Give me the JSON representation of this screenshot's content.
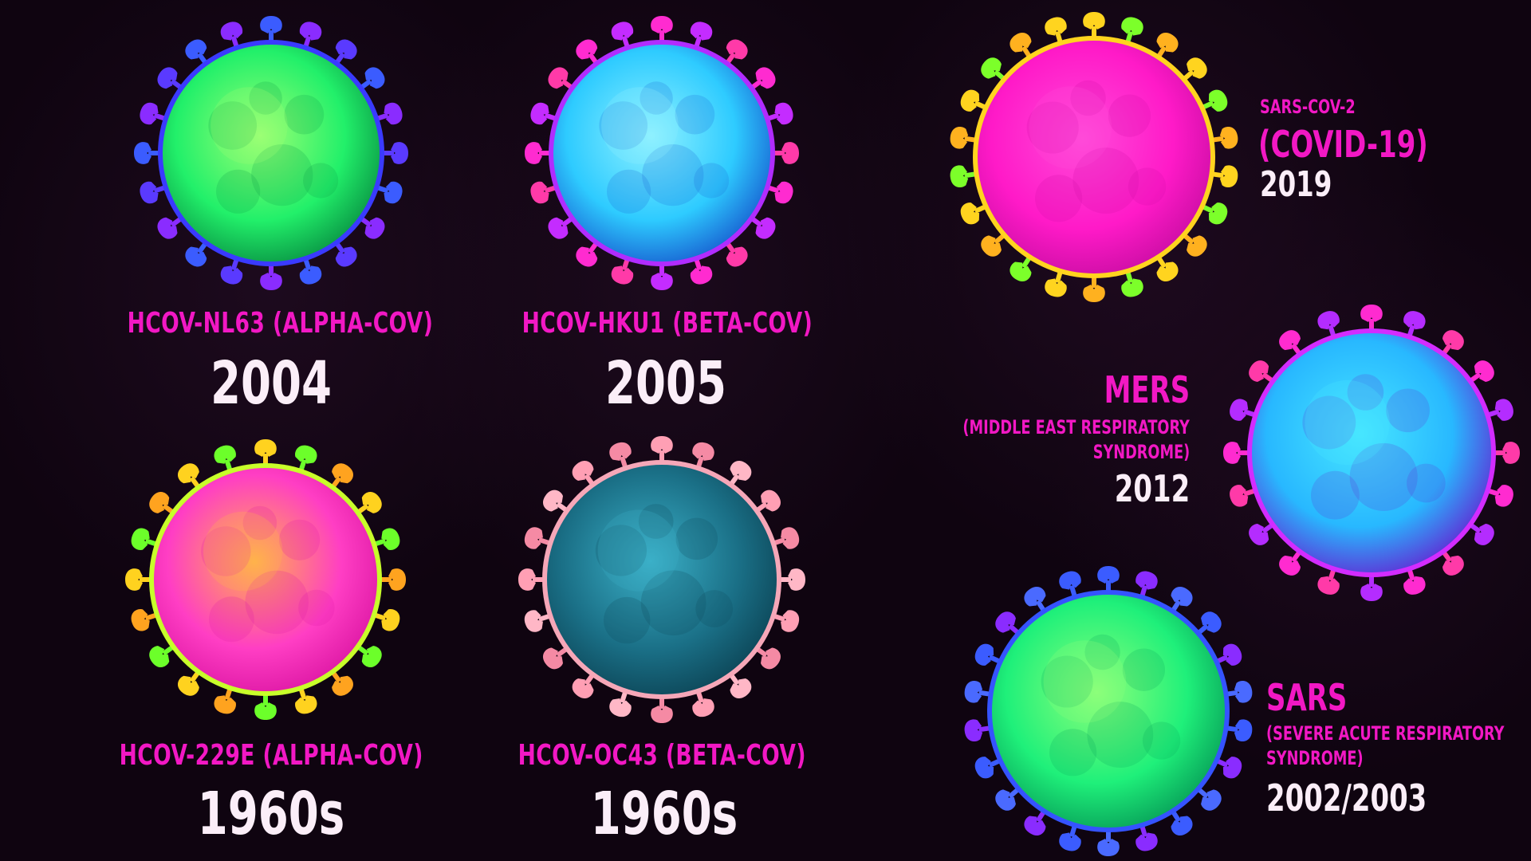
{
  "viruses": [
    {
      "id": "nl63",
      "name": "HCOV-NL63 (ALPHA-COV)",
      "year": "2004",
      "body": [
        "#9cff74",
        "#22f06a",
        "#0c9e48"
      ],
      "rim": "#3a3aff",
      "spikes": [
        "#3b5cff",
        "#8a2cff",
        "#5a3aff"
      ]
    },
    {
      "id": "hku1",
      "name": "HCOV-HKU1 (BETA-COV)",
      "year": "2005",
      "body": [
        "#8ff1ff",
        "#2ecbff",
        "#1a6bd6"
      ],
      "rim": "#b12cff",
      "spikes": [
        "#ff2bd0",
        "#c42cff",
        "#ff3aa8"
      ]
    },
    {
      "id": "e229",
      "name": "HCOV-229E (ALPHA-COV)",
      "year": "1960s",
      "body": [
        "#ffb34a",
        "#ff3ec4",
        "#e11ca8"
      ],
      "rim": "#c8ff2a",
      "spikes": [
        "#ffd21f",
        "#6cff2a",
        "#ffa31f"
      ]
    },
    {
      "id": "oc43",
      "name": "HCOV-OC43 (BETA-COV)",
      "year": "1960s",
      "body": [
        "#3bb0c8",
        "#1a6f86",
        "#0e4a5c"
      ],
      "rim": "#f6a7b8",
      "spikes": [
        "#ff9fb4",
        "#f58aa4",
        "#ffb7c6"
      ]
    },
    {
      "id": "cov2",
      "name_prefix": "SARS-COV-2",
      "name_main": "(COVID-19)",
      "year": "2019",
      "body": [
        "#ff4ad9",
        "#ff1ac8",
        "#d10fa8"
      ],
      "rim": "#ffd41f",
      "spikes": [
        "#ffd41f",
        "#7cff2a",
        "#ffb11f"
      ]
    },
    {
      "id": "mers",
      "name": "MERS",
      "full_name_1": "(MIDDLE EAST RESPIRATORY",
      "full_name_2": "SYNDROME)",
      "year": "2012",
      "body": [
        "#47e6ff",
        "#28b8ff",
        "#5a3ad8"
      ],
      "rim": "#d32cff",
      "spikes": [
        "#ff2bd0",
        "#b42cff",
        "#ff3aa8"
      ]
    },
    {
      "id": "sars",
      "name": "SARS",
      "full_name_1": "(SEVERE ACUTE RESPIRATORY",
      "full_name_2": "SYNDROME)",
      "year": "2002/2003",
      "body": [
        "#8dff7a",
        "#1ff07a",
        "#0aa85c"
      ],
      "rim": "#3553ff",
      "spikes": [
        "#3b5cff",
        "#8a2cff",
        "#4a6aff"
      ]
    }
  ]
}
